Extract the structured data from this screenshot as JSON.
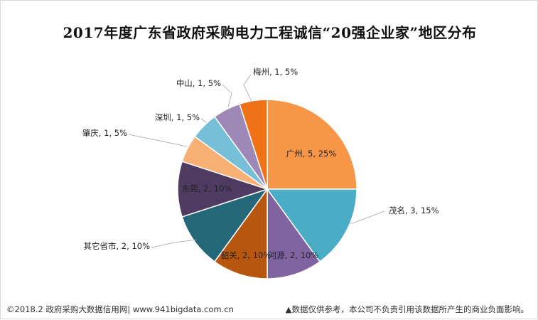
{
  "chart_data": {
    "type": "pie",
    "title": "2017年度广东省政府采购电力工程诚信“20强企业家”地区分布",
    "slices": [
      {
        "name": "广州",
        "value": 5,
        "percent": "25%",
        "color": "#F79646",
        "label": "广州, 5, 25%"
      },
      {
        "name": "茂名",
        "value": 3,
        "percent": "15%",
        "color": "#4BACC6",
        "label": "茂名, 3, 15%"
      },
      {
        "name": "河源",
        "value": 2,
        "percent": "10%",
        "color": "#8064A2",
        "label": "河源, 2, 10%"
      },
      {
        "name": "韶关",
        "value": 2,
        "percent": "10%",
        "color": "#B7560F",
        "label": "韶关, 2, 10%"
      },
      {
        "name": "其它省市",
        "value": 2,
        "percent": "10%",
        "color": "#236779",
        "label": "其它省市, 2, 10%"
      },
      {
        "name": "东莞",
        "value": 2,
        "percent": "10%",
        "color": "#4F3B62",
        "label": "东莞, 2, 10%"
      },
      {
        "name": "肇庆",
        "value": 1,
        "percent": "5%",
        "color": "#F9B074",
        "label": "肇庆, 1, 5%"
      },
      {
        "name": "深圳",
        "value": 1,
        "percent": "5%",
        "color": "#75C0D6",
        "label": "深圳, 1, 5%"
      },
      {
        "name": "中山",
        "value": 1,
        "percent": "5%",
        "color": "#9E88B8",
        "label": "中山, 1, 5%"
      },
      {
        "name": "梅州",
        "value": 1,
        "percent": "5%",
        "color": "#F07217",
        "label": "梅州, 1, 5%"
      }
    ],
    "total": 20
  },
  "footer": {
    "left": "©2018.2 政府采购大数据信用网| www.941bigdata.com.cn",
    "right": "▲数据仅供参考，本公司不负责引用该数据所产生的商业负面影响。"
  }
}
